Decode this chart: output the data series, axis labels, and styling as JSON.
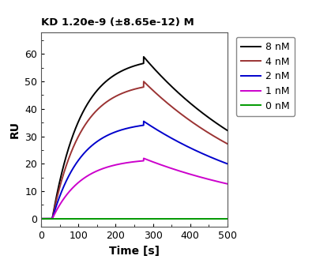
{
  "title": "KD 1.20e-9 (±8.65e-12) M",
  "xlabel": "Time [s]",
  "ylabel": "RU",
  "xlim": [
    0,
    500
  ],
  "ylim": [
    -3,
    68
  ],
  "xticks": [
    0,
    100,
    200,
    300,
    400,
    500
  ],
  "yticks": [
    0,
    10,
    20,
    30,
    40,
    50,
    60
  ],
  "legend_labels": [
    "8 nM",
    "4 nM",
    "2 nM",
    "1 nM",
    "0 nM"
  ],
  "line_colors": [
    "#000000",
    "#9B3333",
    "#0000CC",
    "#CC00CC",
    "#009900"
  ],
  "curves": {
    "8nM": {
      "association_start": 30,
      "association_end": 275,
      "dissociation_end": 490,
      "peak": 59,
      "end": 33,
      "assoc_rate": 3.2,
      "dissoc_rate": 0.38
    },
    "4nM": {
      "association_start": 30,
      "association_end": 275,
      "dissociation_end": 490,
      "peak": 50,
      "end": 28,
      "assoc_rate": 3.2,
      "dissoc_rate": 0.38
    },
    "2nM": {
      "association_start": 30,
      "association_end": 275,
      "dissociation_end": 490,
      "peak": 35.5,
      "end": 20.5,
      "assoc_rate": 3.2,
      "dissoc_rate": 0.38
    },
    "1nM": {
      "association_start": 30,
      "association_end": 275,
      "dissociation_end": 490,
      "peak": 22,
      "end": 13,
      "assoc_rate": 3.2,
      "dissoc_rate": 0.38
    },
    "0nM": {
      "association_start": 0,
      "association_end": 490,
      "dissociation_end": 490,
      "peak": 0,
      "end": 0,
      "assoc_rate": 0,
      "dissoc_rate": 0
    }
  },
  "background_color": "#ffffff",
  "title_fontsize": 9.5,
  "axis_label_fontsize": 10,
  "tick_fontsize": 9,
  "legend_fontsize": 9,
  "linewidth": 1.4
}
